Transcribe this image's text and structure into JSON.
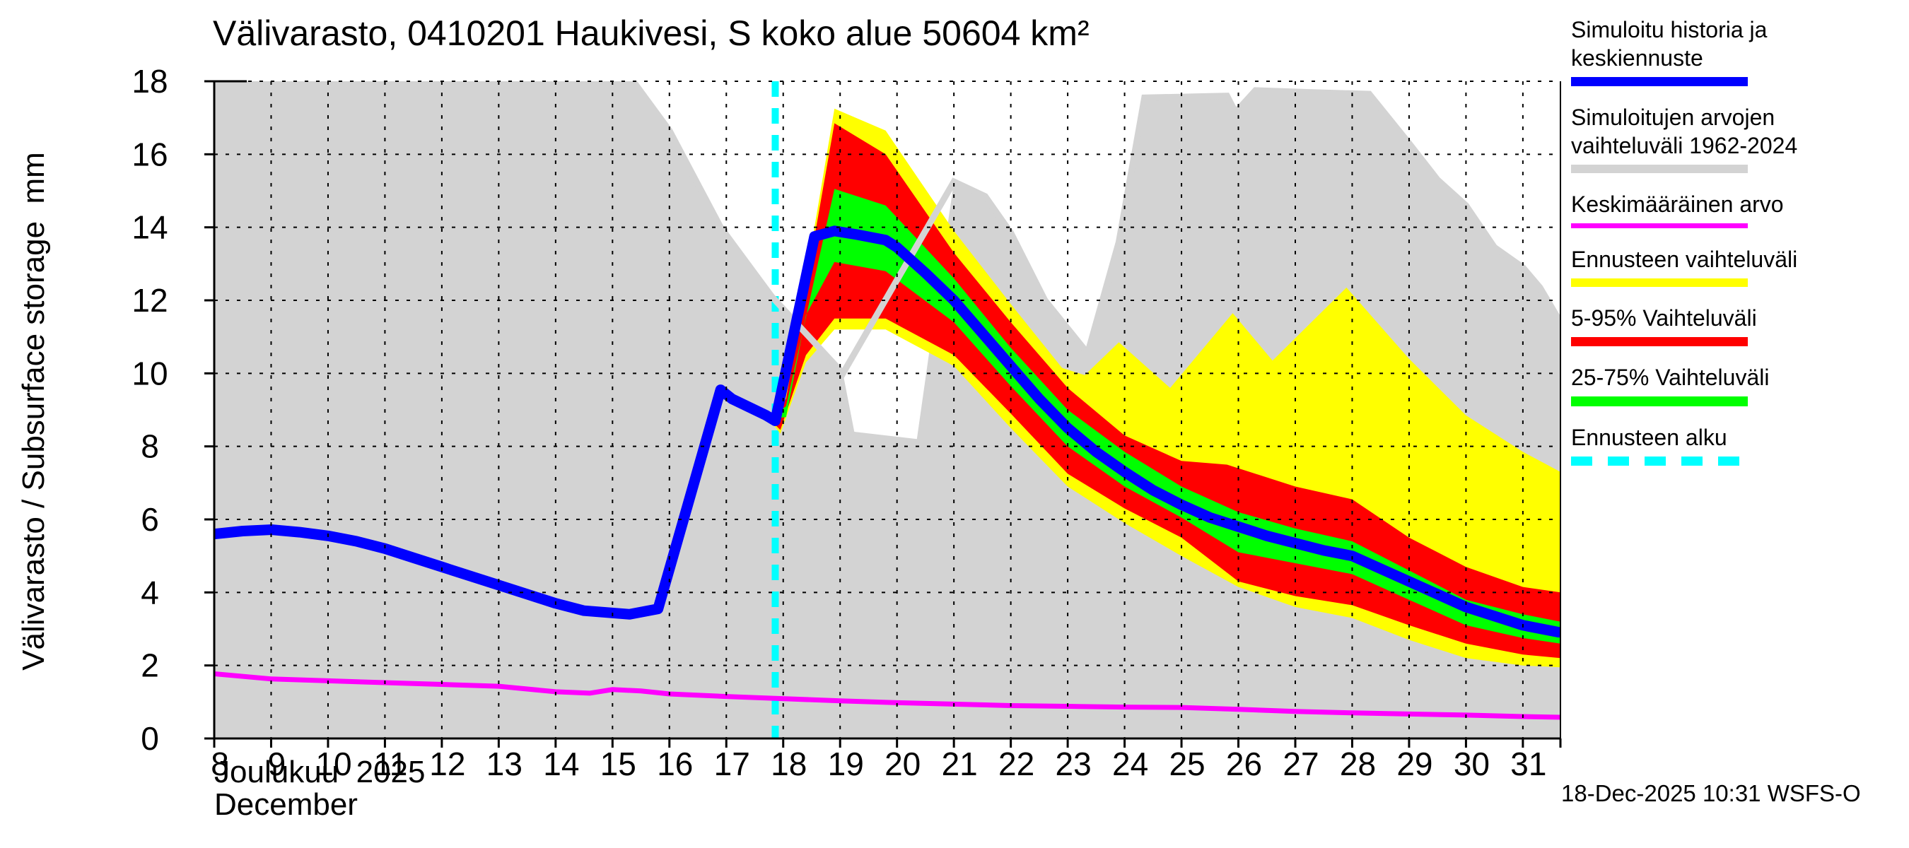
{
  "title": "Välivarasto, 0410201 Haukivesi, S koko alue 50604 km²",
  "y_axis": {
    "label": "Välivarasto / Subsurface storage  mm",
    "ticks": [
      0,
      2,
      4,
      6,
      8,
      10,
      12,
      14,
      16,
      18
    ]
  },
  "x_axis": {
    "ticks": [
      8,
      9,
      10,
      11,
      12,
      13,
      14,
      15,
      16,
      17,
      18,
      19,
      20,
      21,
      22,
      23,
      24,
      25,
      26,
      27,
      28,
      29,
      30,
      31
    ],
    "month_label_fi": "Joulukuu  2025",
    "month_label_en": "December"
  },
  "footer": {
    "generated": "18-Dec-2025 10:31 WSFS-O"
  },
  "legend": {
    "items": [
      {
        "label": "Simuloitu historia ja keskiennuste",
        "swatch": "bar",
        "color": "#0000ff",
        "height": 13
      },
      {
        "label": "Simuloitujen arvojen vaihteluväli 1962-2024",
        "swatch": "bar",
        "color": "#d3d3d3",
        "height": 12
      },
      {
        "label": "Keskimääräinen arvo",
        "swatch": "bar",
        "color": "#ff00ff",
        "height": 7
      },
      {
        "label": "Ennusteen vaihteluväli",
        "swatch": "bar",
        "color": "#ffff00",
        "height": 12
      },
      {
        "label": "5-95% Vaihteluväli",
        "swatch": "bar",
        "color": "#ff0000",
        "height": 13
      },
      {
        "label": "25-75% Vaihteluväli",
        "swatch": "bar",
        "color": "#00ff00",
        "height": 14
      },
      {
        "label": "Ennusteen alku",
        "swatch": "dashed",
        "color": "#00ffff",
        "height": 13
      }
    ]
  },
  "chart_data": {
    "type": "area",
    "title": "Välivarasto, 0410201 Haukivesi, S koko alue 50604 km²",
    "xlabel": "Joulukuu 2025 / December",
    "ylabel": "Välivarasto / Subsurface storage mm",
    "x_range": [
      8,
      31.66
    ],
    "y_range": [
      0,
      18
    ],
    "grid": true,
    "forecast_start_day": 17.86,
    "styles": {
      "simulated_range_fill": "#d3d3d3",
      "forecast_range_fill": "#ffff00",
      "range_5_95_fill": "#ff0000",
      "range_25_75_fill": "#00ff00",
      "history_mean_line": "#0000ff",
      "long_term_mean_line": "#ff00ff",
      "forecast_start_line": "#00ffff"
    },
    "series": {
      "simulated_range_max": [
        [
          8,
          18.05
        ],
        [
          15.34,
          18.05
        ],
        [
          16,
          16.65
        ],
        [
          16.9,
          14.0
        ],
        [
          17.8,
          12.1
        ],
        [
          19.05,
          10.0
        ],
        [
          19.25,
          8.4
        ],
        [
          20.35,
          8.2
        ],
        [
          20.65,
          11.5
        ],
        [
          21,
          15.25
        ],
        [
          21.55,
          14.85
        ],
        [
          22,
          13.85
        ],
        [
          22.6,
          12.0
        ],
        [
          23.35,
          10.55
        ],
        [
          23.9,
          13.6
        ],
        [
          24.35,
          17.55
        ],
        [
          25.8,
          17.6
        ],
        [
          25.95,
          17.15
        ],
        [
          26.3,
          17.75
        ],
        [
          27.2,
          17.7
        ],
        [
          28.3,
          17.65
        ],
        [
          29,
          16.3
        ],
        [
          29.5,
          15.3
        ],
        [
          30,
          14.6
        ],
        [
          30.5,
          13.45
        ],
        [
          31,
          12.9
        ],
        [
          31.3,
          12.35
        ],
        [
          31.66,
          11.4
        ]
      ],
      "simulated_range_edge": [
        [
          8,
          18.05
        ],
        [
          15.34,
          18.05
        ],
        [
          16,
          16.65
        ],
        [
          16.9,
          14.0
        ],
        [
          17.8,
          12.1
        ],
        [
          19.05,
          10.0
        ],
        [
          21,
          15.25
        ],
        [
          21.55,
          14.85
        ],
        [
          22,
          13.85
        ],
        [
          22.6,
          12.0
        ],
        [
          23.35,
          10.55
        ],
        [
          23.9,
          13.6
        ],
        [
          24.35,
          17.55
        ],
        [
          25.8,
          17.6
        ],
        [
          25.95,
          17.15
        ],
        [
          26.3,
          17.75
        ],
        [
          27.2,
          17.7
        ],
        [
          28.3,
          17.65
        ],
        [
          29,
          16.3
        ],
        [
          29.5,
          15.3
        ],
        [
          30,
          14.6
        ],
        [
          30.5,
          13.45
        ],
        [
          31,
          12.9
        ],
        [
          31.3,
          12.35
        ],
        [
          31.66,
          11.4
        ]
      ],
      "forecast_range_top": [
        [
          17.75,
          8.75
        ],
        [
          18.05,
          9.4
        ],
        [
          18.9,
          17.25
        ],
        [
          19.8,
          16.65
        ],
        [
          21,
          13.9
        ],
        [
          22,
          11.9
        ],
        [
          22.9,
          10.15
        ],
        [
          23.3,
          9.95
        ],
        [
          23.9,
          10.85
        ],
        [
          24.8,
          9.6
        ],
        [
          25.9,
          11.65
        ],
        [
          26.6,
          10.35
        ],
        [
          27.9,
          12.35
        ],
        [
          29,
          10.4
        ],
        [
          30,
          8.85
        ],
        [
          31,
          7.85
        ],
        [
          31.66,
          7.3
        ]
      ],
      "forecast_range_bottom": [
        [
          17.75,
          8.75
        ],
        [
          17.95,
          8.35
        ],
        [
          18.4,
          10.3
        ],
        [
          18.9,
          11.2
        ],
        [
          19.8,
          11.2
        ],
        [
          21,
          10.2
        ],
        [
          22,
          8.5
        ],
        [
          23,
          6.9
        ],
        [
          24,
          5.9
        ],
        [
          25,
          5.0
        ],
        [
          26,
          4.15
        ],
        [
          27,
          3.6
        ],
        [
          28,
          3.3
        ],
        [
          29,
          2.7
        ],
        [
          30,
          2.2
        ],
        [
          31,
          2.0
        ],
        [
          31.66,
          1.95
        ]
      ],
      "range_5_95_top": [
        [
          17.75,
          8.75
        ],
        [
          18.05,
          9.3
        ],
        [
          18.9,
          16.85
        ],
        [
          19.8,
          16.0
        ],
        [
          21,
          13.3
        ],
        [
          22,
          11.4
        ],
        [
          23,
          9.6
        ],
        [
          24,
          8.3
        ],
        [
          25,
          7.6
        ],
        [
          25.8,
          7.5
        ],
        [
          27,
          6.9
        ],
        [
          28,
          6.55
        ],
        [
          29,
          5.5
        ],
        [
          30,
          4.7
        ],
        [
          31,
          4.15
        ],
        [
          31.66,
          4.0
        ]
      ],
      "range_5_95_bottom": [
        [
          17.75,
          8.75
        ],
        [
          17.95,
          8.45
        ],
        [
          18.4,
          10.5
        ],
        [
          18.9,
          11.5
        ],
        [
          19.8,
          11.5
        ],
        [
          21,
          10.5
        ],
        [
          22,
          8.9
        ],
        [
          23,
          7.25
        ],
        [
          24,
          6.3
        ],
        [
          25,
          5.5
        ],
        [
          26,
          4.3
        ],
        [
          27,
          3.9
        ],
        [
          28,
          3.65
        ],
        [
          29,
          3.1
        ],
        [
          30,
          2.6
        ],
        [
          31,
          2.3
        ],
        [
          31.66,
          2.2
        ]
      ],
      "range_25_75_top": [
        [
          17.75,
          8.75
        ],
        [
          18.05,
          9.1
        ],
        [
          18.9,
          15.05
        ],
        [
          19.8,
          14.6
        ],
        [
          21,
          12.6
        ],
        [
          22,
          10.7
        ],
        [
          23,
          9.0
        ],
        [
          24,
          7.85
        ],
        [
          25,
          6.9
        ],
        [
          26,
          6.2
        ],
        [
          27,
          5.75
        ],
        [
          28,
          5.4
        ],
        [
          29,
          4.6
        ],
        [
          30,
          3.8
        ],
        [
          31,
          3.4
        ],
        [
          31.66,
          3.2
        ]
      ],
      "range_25_75_bottom": [
        [
          17.75,
          8.75
        ],
        [
          18.05,
          8.8
        ],
        [
          18.4,
          11.6
        ],
        [
          18.9,
          13.05
        ],
        [
          19.8,
          12.8
        ],
        [
          21,
          11.4
        ],
        [
          22,
          9.65
        ],
        [
          23,
          8.0
        ],
        [
          24,
          6.9
        ],
        [
          25,
          6.05
        ],
        [
          26,
          5.1
        ],
        [
          27,
          4.8
        ],
        [
          28,
          4.5
        ],
        [
          29,
          3.8
        ],
        [
          30,
          3.1
        ],
        [
          31,
          2.75
        ],
        [
          31.66,
          2.6
        ]
      ],
      "history_and_mean_forecast": [
        [
          8,
          5.6
        ],
        [
          8.5,
          5.68
        ],
        [
          9,
          5.72
        ],
        [
          9.5,
          5.65
        ],
        [
          10,
          5.55
        ],
        [
          10.5,
          5.4
        ],
        [
          11,
          5.2
        ],
        [
          11.5,
          4.95
        ],
        [
          12,
          4.7
        ],
        [
          12.5,
          4.45
        ],
        [
          13,
          4.2
        ],
        [
          13.5,
          3.95
        ],
        [
          14,
          3.7
        ],
        [
          14.5,
          3.5
        ],
        [
          15.3,
          3.4
        ],
        [
          15.8,
          3.55
        ],
        [
          16.9,
          9.55
        ],
        [
          17.1,
          9.3
        ],
        [
          17.7,
          8.85
        ],
        [
          17.86,
          8.7
        ],
        [
          18.55,
          13.75
        ],
        [
          18.9,
          13.9
        ],
        [
          19.3,
          13.8
        ],
        [
          19.8,
          13.65
        ],
        [
          20,
          13.45
        ],
        [
          20.5,
          12.75
        ],
        [
          21,
          12.0
        ],
        [
          21.5,
          11.1
        ],
        [
          22,
          10.2
        ],
        [
          22.5,
          9.3
        ],
        [
          23,
          8.5
        ],
        [
          23.5,
          7.85
        ],
        [
          24,
          7.3
        ],
        [
          24.5,
          6.8
        ],
        [
          25,
          6.4
        ],
        [
          25.5,
          6.05
        ],
        [
          26,
          5.8
        ],
        [
          26.5,
          5.55
        ],
        [
          27,
          5.35
        ],
        [
          27.5,
          5.15
        ],
        [
          28,
          5.0
        ],
        [
          28.5,
          4.65
        ],
        [
          29,
          4.3
        ],
        [
          29.5,
          3.95
        ],
        [
          30,
          3.6
        ],
        [
          30.5,
          3.35
        ],
        [
          31,
          3.1
        ],
        [
          31.66,
          2.9
        ]
      ],
      "long_term_mean": [
        [
          8,
          1.77
        ],
        [
          9,
          1.63
        ],
        [
          10,
          1.58
        ],
        [
          11,
          1.53
        ],
        [
          12,
          1.48
        ],
        [
          13,
          1.43
        ],
        [
          14,
          1.28
        ],
        [
          14.6,
          1.24
        ],
        [
          15,
          1.34
        ],
        [
          15.5,
          1.3
        ],
        [
          16,
          1.22
        ],
        [
          17,
          1.15
        ],
        [
          17.86,
          1.1
        ],
        [
          19,
          1.03
        ],
        [
          20,
          0.98
        ],
        [
          21,
          0.94
        ],
        [
          22,
          0.9
        ],
        [
          23,
          0.88
        ],
        [
          24,
          0.86
        ],
        [
          25,
          0.85
        ],
        [
          26,
          0.8
        ],
        [
          27,
          0.74
        ],
        [
          28,
          0.7
        ],
        [
          29,
          0.67
        ],
        [
          30,
          0.64
        ],
        [
          31,
          0.6
        ],
        [
          31.66,
          0.58
        ]
      ]
    }
  }
}
